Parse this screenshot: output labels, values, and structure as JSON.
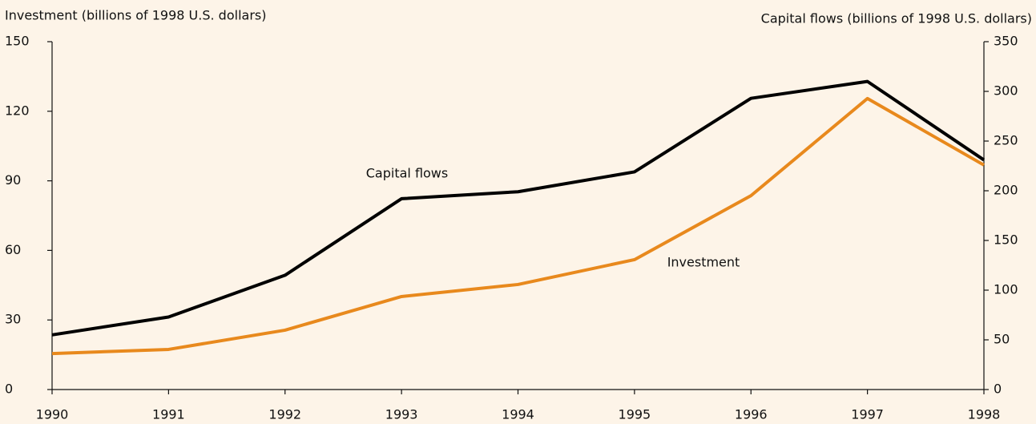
{
  "chart_data": {
    "type": "line",
    "y_label": "Investment (billions of 1998 U.S. dollars)",
    "y2_label": "Capital flows (billions of 1998 U.S. dollars)",
    "annotations": [
      "Capital flows",
      "Investment"
    ],
    "x": [
      1990,
      1991,
      1992,
      1993,
      1994,
      1995,
      1996,
      1997,
      1998
    ],
    "xlim": [
      1990,
      1998
    ],
    "xticks": [
      1990,
      1991,
      1992,
      1993,
      1994,
      1995,
      1996,
      1997,
      1998
    ],
    "ylim": [
      0,
      150
    ],
    "yticks": [
      0,
      30,
      60,
      90,
      120,
      150
    ],
    "y2lim": [
      0,
      350
    ],
    "y2ticks": [
      0,
      50,
      100,
      150,
      200,
      250,
      300,
      350
    ],
    "series": [
      {
        "name": "Capital flows",
        "color": "#000000",
        "axis": "y2",
        "values": [
          55,
          73,
          115,
          192,
          199,
          219,
          293,
          310,
          231
        ]
      },
      {
        "name": "Investment",
        "color": "#e8891d",
        "axis": "y",
        "values": [
          15.5,
          17.3,
          25.6,
          40.1,
          45.3,
          56,
          83.6,
          125.5,
          96.8
        ]
      }
    ]
  }
}
